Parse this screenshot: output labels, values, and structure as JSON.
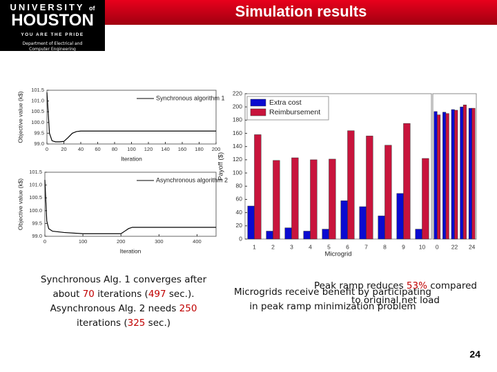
{
  "header": {
    "university": "UNIVERSITY",
    "of": "of",
    "name": "HOUSTON",
    "motto": "YOU ARE THE PRIDE",
    "department": [
      "Department of Electrical and",
      "Computer Engineering"
    ]
  },
  "title": "Simulation results",
  "chart_data": [
    {
      "type": "line",
      "xlabel": "Iteration",
      "ylabel": "Objective value (k$)",
      "xlim": [
        0,
        200
      ],
      "xticks": [
        0,
        20,
        40,
        60,
        80,
        100,
        120,
        140,
        160,
        180,
        200
      ],
      "ylim": [
        99,
        101.5
      ],
      "yticks": [
        {
          "value": 99,
          "label": "99.0"
        },
        99.5,
        {
          "value": 100,
          "label": "100.0"
        },
        100.5,
        {
          "value": 101,
          "label": "101.0"
        },
        101.5
      ],
      "x": [
        0,
        3,
        6,
        10,
        15,
        20,
        25,
        30,
        35,
        40,
        50,
        200
      ],
      "series": [
        {
          "name": "Synchronous algorithm 1",
          "color": "#000000",
          "values": [
            101.4,
            99.5,
            99.15,
            99.1,
            99.1,
            99.12,
            99.3,
            99.5,
            99.58,
            99.6,
            99.6,
            99.6
          ]
        }
      ],
      "legend": "upper right"
    },
    {
      "type": "line",
      "xlabel": "Iteration",
      "ylabel": "Objective value (k$)",
      "xlim": [
        0,
        450
      ],
      "xticks": [
        0,
        100,
        200,
        300,
        400
      ],
      "ylim": [
        99,
        101.5
      ],
      "yticks": [
        {
          "value": 99,
          "label": "99.0"
        },
        99.5,
        {
          "value": 100,
          "label": "100.0"
        },
        100.5,
        {
          "value": 101,
          "label": "101.0"
        },
        101.5
      ],
      "x": [
        0,
        5,
        10,
        20,
        50,
        100,
        150,
        200,
        210,
        220,
        230,
        250,
        300,
        450
      ],
      "series": [
        {
          "name": "Asynchronous algorithm 2",
          "color": "#000000",
          "values": [
            101.2,
            99.6,
            99.3,
            99.2,
            99.15,
            99.1,
            99.1,
            99.1,
            99.2,
            99.3,
            99.35,
            99.35,
            99.35,
            99.35
          ]
        }
      ],
      "legend": "upper right"
    },
    {
      "type": "bar",
      "xlabel": "Microgrid",
      "ylabel": "Payoff ($)",
      "categories": [
        "1",
        "2",
        "3",
        "4",
        "5",
        "6",
        "7",
        "8",
        "9",
        "10"
      ],
      "ylim": [
        0,
        220
      ],
      "yticks": [
        0,
        20,
        40,
        60,
        80,
        100,
        120,
        140,
        160,
        180,
        200,
        220
      ],
      "series": [
        {
          "name": "Extra cost",
          "color": "#0a0ad0",
          "values": [
            50,
            12,
            17,
            12,
            15,
            58,
            49,
            35,
            69,
            15
          ]
        },
        {
          "name": "Reimbursement",
          "color": "#c8143c",
          "values": [
            158,
            119,
            123,
            120,
            121,
            164,
            156,
            142,
            175,
            122
          ]
        }
      ],
      "legend": "upper left"
    },
    {
      "type": "bar",
      "categories": [
        "0",
        null,
        "22",
        null,
        "24"
      ],
      "ylim": [
        0,
        220
      ],
      "series": [
        {
          "color": "#0a0ad0",
          "values": [
            193,
            192,
            196,
            200,
            198
          ]
        },
        {
          "color": "#c8143c",
          "values": [
            188,
            190,
            195,
            203,
            198
          ]
        }
      ]
    }
  ],
  "notes": {
    "left": [
      [
        "Synchronous Alg. 1 converges after"
      ],
      [
        "about ",
        "70",
        " iterations (",
        "497",
        " sec.)."
      ],
      [
        "Asynchronous Alg. 2 needs ",
        "250"
      ],
      [
        "iterations (",
        "325",
        " sec.)"
      ]
    ],
    "peak": [
      [
        "Peak ramp reduces ",
        "53%",
        " compared"
      ],
      [
        "to original net load"
      ]
    ],
    "benefit": [
      [
        "Microgrids receive benefit by participating"
      ],
      [
        "in peak ramp minimization problem"
      ]
    ]
  },
  "page_number": "24"
}
